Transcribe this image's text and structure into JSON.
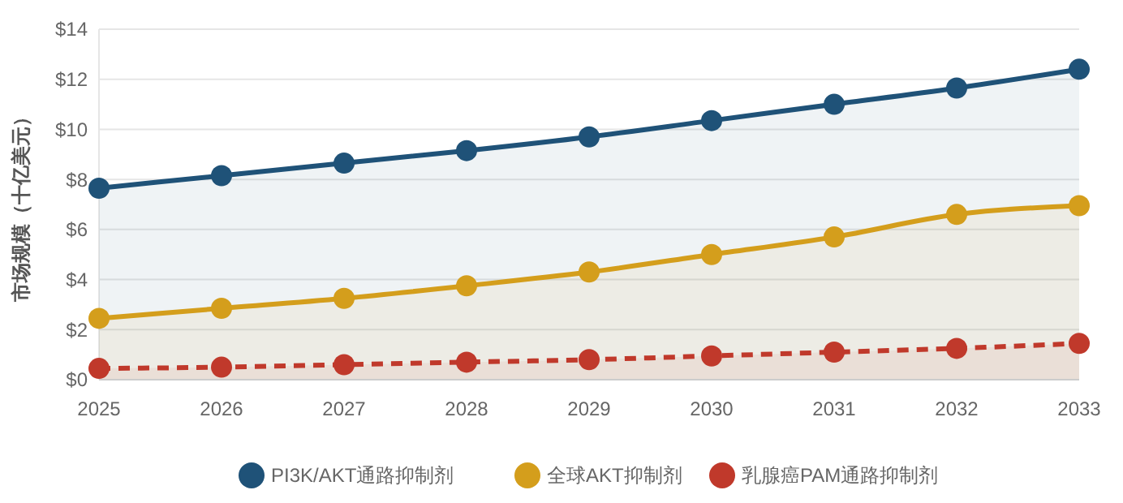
{
  "chart_data": {
    "type": "area",
    "ylabel": "市场规模（十亿美元）",
    "categories": [
      "2025",
      "2026",
      "2027",
      "2028",
      "2029",
      "2030",
      "2031",
      "2032",
      "2033"
    ],
    "series": [
      {
        "name": "PI3K/AKT通路抑制剂",
        "color": "#1f5278",
        "values": [
          7.65,
          8.15,
          8.65,
          9.15,
          9.7,
          10.35,
          11.0,
          11.65,
          12.4
        ]
      },
      {
        "name": "全球AKT抑制剂",
        "color": "#d49e1c",
        "values": [
          2.45,
          2.85,
          3.25,
          3.75,
          4.3,
          5.0,
          5.7,
          6.6,
          6.95
        ]
      },
      {
        "name": "乳腺癌PAM通路抑制剂",
        "color": "#c0392b",
        "values": [
          0.45,
          0.5,
          0.6,
          0.7,
          0.8,
          0.95,
          1.1,
          1.25,
          1.45
        ],
        "line_style": "dashed"
      }
    ],
    "ylim": [
      0,
      14
    ],
    "yticks": [
      {
        "value": 0,
        "label": "$0"
      },
      {
        "value": 2,
        "label": "$2"
      },
      {
        "value": 4,
        "label": "$4"
      },
      {
        "value": 6,
        "label": "$6"
      },
      {
        "value": 8,
        "label": "$8"
      },
      {
        "value": 10,
        "label": "$10"
      },
      {
        "value": 12,
        "label": "$12"
      },
      {
        "value": 14,
        "label": "$14"
      }
    ],
    "grid": "y",
    "legend": "bottom",
    "marker": "circle",
    "line_style": "solid"
  }
}
